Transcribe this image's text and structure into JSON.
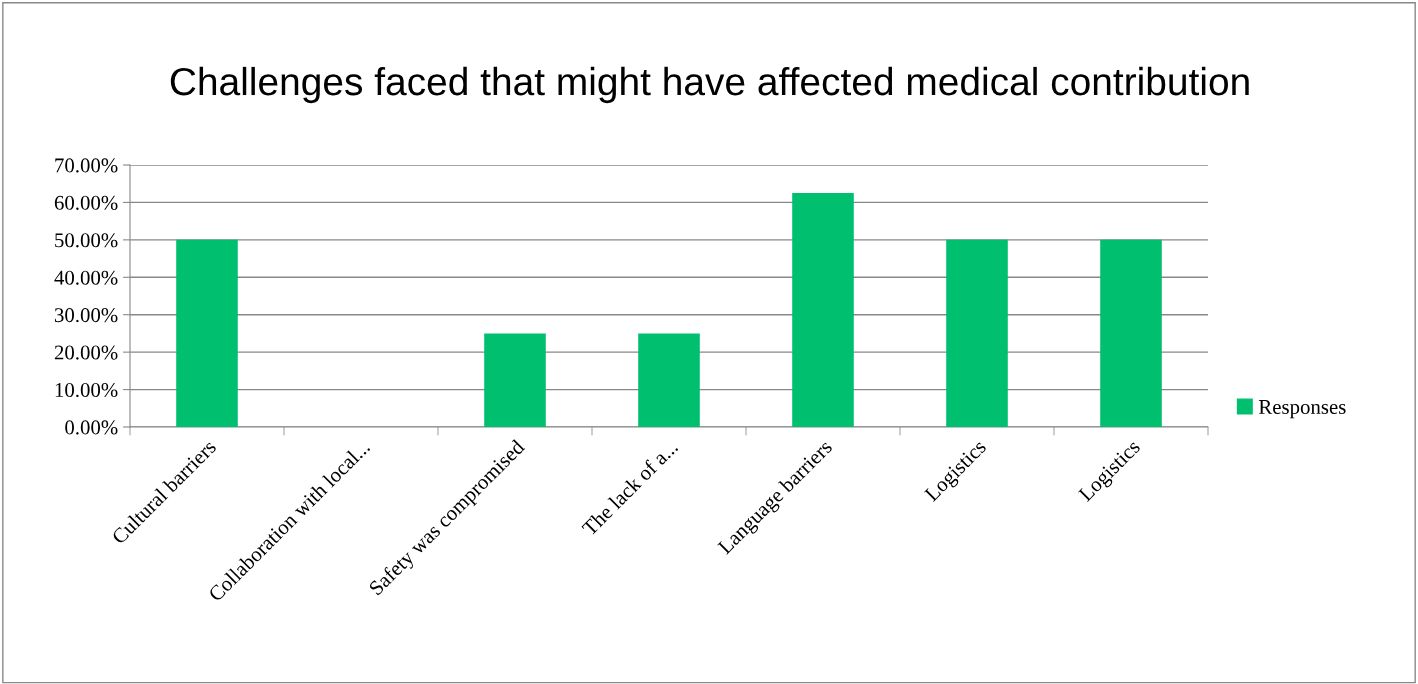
{
  "chart_data": {
    "type": "bar",
    "title": "Challenges faced that might have affected medical contribution",
    "categories": [
      "Cultural barriers",
      "Collaboration with local...",
      "Safety was compromised",
      "The lack of a...",
      "Language barriers",
      "Logistics",
      "Logistics"
    ],
    "series": [
      {
        "name": "Responses",
        "color": "#00c070",
        "values": [
          50,
          0,
          25,
          25,
          62.5,
          50,
          50
        ]
      }
    ],
    "ylim": [
      0,
      70
    ],
    "yticks": [
      {
        "value": 0,
        "label": "0.00%"
      },
      {
        "value": 10,
        "label": "10.00%"
      },
      {
        "value": 20,
        "label": "20.00%"
      },
      {
        "value": 30,
        "label": "30.00%"
      },
      {
        "value": 40,
        "label": "40.00%"
      },
      {
        "value": 50,
        "label": "50.00%"
      },
      {
        "value": 60,
        "label": "60.00%"
      },
      {
        "value": 70,
        "label": "70.00%"
      }
    ],
    "grid": "y",
    "legend": "right"
  }
}
